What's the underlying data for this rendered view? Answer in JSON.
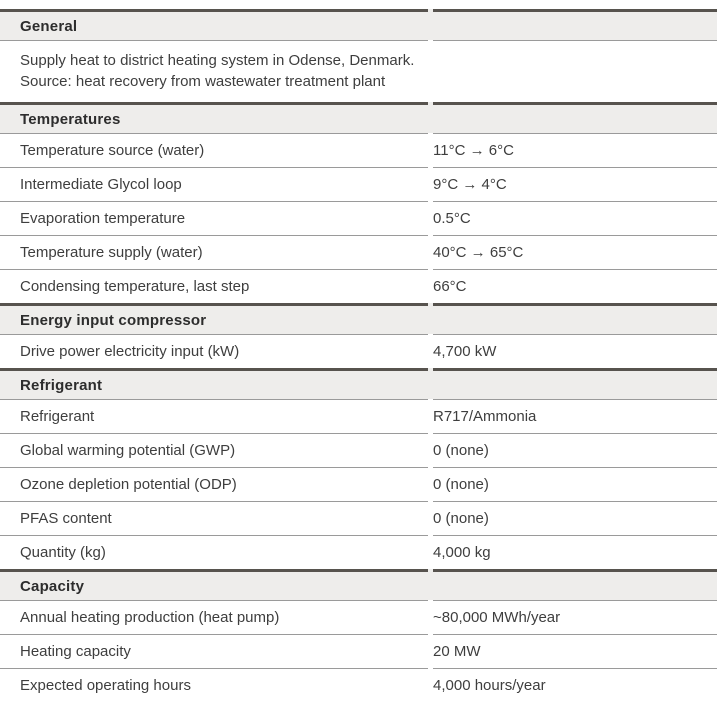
{
  "colors": {
    "header-bg": "#eeedeb",
    "dark-border": "#57534e",
    "divider": "#9a9a9a",
    "header-color": "#2d2d2d",
    "text-color": "#3e3e3e"
  },
  "table": {
    "sections": [
      {
        "header": "General",
        "description_lines": [
          "Supply heat to district heating system in Odense, Denmark.",
          "Source: heat recovery from wastewater treatment plant"
        ],
        "rows": []
      },
      {
        "header": "Temperatures",
        "rows": [
          {
            "label": "Temperature source (water)",
            "value": "11°C → 6°C"
          },
          {
            "label": "Intermediate Glycol loop",
            "value": "9°C → 4°C"
          },
          {
            "label": "Evaporation temperature",
            "value": "0.5°C"
          },
          {
            "label": "Temperature supply (water)",
            "value": "40°C → 65°C"
          },
          {
            "label": "Condensing temperature, last step",
            "value": "66°C"
          }
        ]
      },
      {
        "header": "Energy input compressor",
        "rows": [
          {
            "label": "Drive power electricity input (kW)",
            "value": "4,700 kW"
          }
        ]
      },
      {
        "header": "Refrigerant",
        "rows": [
          {
            "label": "Refrigerant",
            "value": "R717/Ammonia"
          },
          {
            "label": "Global warming potential (GWP)",
            "value": "0 (none)"
          },
          {
            "label": "Ozone depletion potential (ODP)",
            "value": "0 (none)"
          },
          {
            "label": "PFAS content",
            "value": "0 (none)"
          },
          {
            "label": "Quantity (kg)",
            "value": "4,000 kg"
          }
        ]
      },
      {
        "header": "Capacity",
        "rows": [
          {
            "label": "Annual heating production (heat pump)",
            "value": "~80,000 MWh/year"
          },
          {
            "label": "Heating capacity",
            "value": "20 MW"
          },
          {
            "label": "Expected operating hours",
            "value": "4,000 hours/year"
          }
        ]
      }
    ]
  }
}
